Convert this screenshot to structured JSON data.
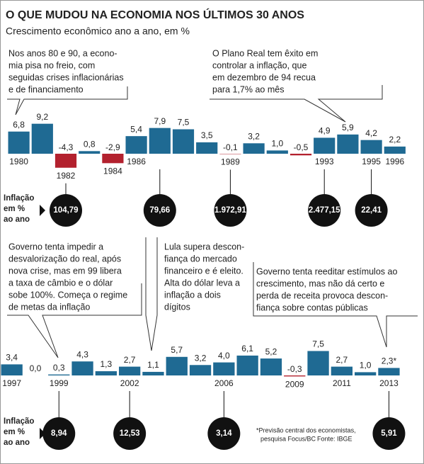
{
  "title": "O QUE MUDOU NA ECONOMIA NOS ÚLTIMOS 30 ANOS",
  "subtitle": "Crescimento econômico ano a ano, em %",
  "note": [
    "*Previsão central dos economistas,",
    "pesquisa Focus/BC"
  ],
  "source": "Fonte: IBGE",
  "chart_data": [
    {
      "type": "bar",
      "color": "#1f6a93",
      "negative_color": "#b3212e",
      "categories": [
        "1980",
        null,
        "1982",
        null,
        "1984",
        "1986",
        null,
        null,
        null,
        "1989",
        null,
        null,
        null,
        "1993",
        null,
        "1995",
        "1996"
      ],
      "values": [
        6.8,
        9.2,
        -4.3,
        0.8,
        -2.9,
        5.4,
        7.9,
        7.5,
        3.5,
        -0.1,
        3.2,
        1.0,
        -0.5,
        4.9,
        5.9,
        4.2,
        2.2
      ],
      "value_labels": [
        "6,8",
        "9,2",
        "-4,3",
        "0,8",
        "-2,9",
        "5,4",
        "7,9",
        "7,5",
        "3,5",
        "-0,1",
        "3,2",
        "1,0",
        "-0,5",
        "4,9",
        "5,9",
        "4,2",
        "2,2"
      ],
      "inflation_label": [
        "Inflação",
        "em %",
        "ao ano"
      ],
      "inflation": [
        null,
        null,
        104.79,
        null,
        null,
        null,
        79.66,
        null,
        null,
        1972.91,
        null,
        null,
        null,
        2477.15,
        null,
        22.41,
        null
      ],
      "inflation_labels": [
        null,
        null,
        "104,79",
        null,
        null,
        null,
        "79,66",
        null,
        null,
        "1.972,91",
        null,
        null,
        null,
        "2.477,15",
        null,
        "22,41",
        null
      ],
      "annotations": [
        {
          "lines": [
            "Nos anos 80 e 90, a econo-",
            "mia pisa no freio, com",
            "seguidas crises inflacionárias",
            "e de financiamento"
          ]
        },
        {
          "lines": [
            "O Plano Real tem êxito em",
            "controlar a inflação, que",
            "em dezembro de 94 recua",
            "para 1,7% ao mês"
          ]
        }
      ]
    },
    {
      "type": "bar",
      "color": "#1f6a93",
      "negative_color": "#b3212e",
      "categories": [
        "1997",
        null,
        "1999",
        null,
        null,
        "2002",
        null,
        null,
        null,
        "2006",
        null,
        null,
        "2009",
        null,
        "2011",
        null,
        "2013"
      ],
      "values": [
        3.4,
        0.0,
        0.3,
        4.3,
        1.3,
        2.7,
        1.1,
        5.7,
        3.2,
        4.0,
        6.1,
        5.2,
        -0.3,
        7.5,
        2.7,
        1.0,
        2.3
      ],
      "value_labels": [
        "3,4",
        "0,0",
        "0,3",
        "4,3",
        "1,3",
        "2,7",
        "1,1",
        "5,7",
        "3,2",
        "4,0",
        "6,1",
        "5,2",
        "-0,3",
        "7,5",
        "2,7",
        "1,0",
        "2,3*"
      ],
      "inflation_label": [
        "Inflação",
        "em %",
        "ao ano"
      ],
      "inflation": [
        null,
        null,
        8.94,
        null,
        null,
        12.53,
        null,
        null,
        null,
        3.14,
        null,
        null,
        null,
        null,
        null,
        null,
        5.91
      ],
      "inflation_labels": [
        null,
        null,
        "8,94",
        null,
        null,
        "12,53",
        null,
        null,
        null,
        "3,14",
        null,
        null,
        null,
        null,
        null,
        null,
        "5,91"
      ],
      "annotations": [
        {
          "lines": [
            "Governo tenta impedir a",
            "desvalorização do real, após",
            "nova crise, mas em 99 libera",
            "a taxa de câmbio e o dólar",
            "sobe 100%. Começa o regime",
            "de metas da inflação"
          ]
        },
        {
          "lines": [
            "Lula supera descon-",
            "fiança do mercado",
            "financeiro e é eleito.",
            "Alta do dólar leva a",
            "inflação a dois",
            "dígitos"
          ]
        },
        {
          "lines": [
            "Governo tenta reeditar estímulos ao",
            "crescimento, mas não dá certo e",
            "perda de receita provoca descon-",
            "fiança sobre contas públicas"
          ]
        }
      ]
    }
  ]
}
